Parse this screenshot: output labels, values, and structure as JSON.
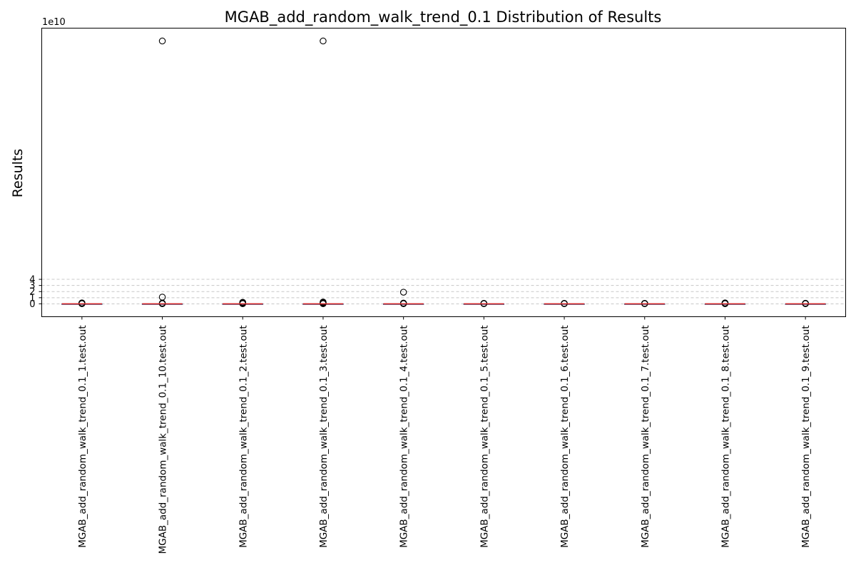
{
  "chart_data": {
    "type": "box",
    "title": "MGAB_add_random_walk_trend_0.1 Distribution of Results",
    "xlabel": "",
    "ylabel": "Results",
    "y_scale_label": "1e10",
    "y_scale": 10000000000,
    "ylim": [
      -2.1,
      45.0
    ],
    "yticks": [
      0,
      1,
      2,
      3,
      4
    ],
    "grid": "y-dashed",
    "colors": {
      "median": "#d62728",
      "box": "#1f3b7a",
      "outlier_edge": "#000000",
      "grid": "#c8c8c8"
    },
    "categories": [
      "MGAB_add_random_walk_trend_0.1_1.test.out",
      "MGAB_add_random_walk_trend_0.1_10.test.out",
      "MGAB_add_random_walk_trend_0.1_2.test.out",
      "MGAB_add_random_walk_trend_0.1_3.test.out",
      "MGAB_add_random_walk_trend_0.1_4.test.out",
      "MGAB_add_random_walk_trend_0.1_5.test.out",
      "MGAB_add_random_walk_trend_0.1_6.test.out",
      "MGAB_add_random_walk_trend_0.1_7.test.out",
      "MGAB_add_random_walk_trend_0.1_8.test.out",
      "MGAB_add_random_walk_trend_0.1_9.test.out"
    ],
    "boxes": [
      {
        "q1": 0,
        "median": 0,
        "q3": 0,
        "whisker_low": 0,
        "whisker_high": 0,
        "outliers": [
          0.02,
          0.05,
          0.1,
          0.15
        ]
      },
      {
        "q1": 0,
        "median": 0,
        "q3": 0,
        "whisker_low": 0,
        "whisker_high": 0,
        "outliers": [
          0.02,
          0.06,
          0.12,
          1.1,
          42.9
        ]
      },
      {
        "q1": 0,
        "median": 0,
        "q3": 0,
        "whisker_low": 0,
        "whisker_high": 0,
        "outliers": [
          0.02,
          0.06,
          0.1,
          0.18,
          0.25
        ]
      },
      {
        "q1": 0,
        "median": 0,
        "q3": 0,
        "whisker_low": 0,
        "whisker_high": 0,
        "outliers": [
          0.02,
          0.06,
          0.12,
          0.2,
          0.3,
          42.9
        ]
      },
      {
        "q1": 0,
        "median": 0,
        "q3": 0,
        "whisker_low": 0,
        "whisker_high": 0,
        "outliers": [
          0.02,
          0.06,
          0.12,
          1.9
        ]
      },
      {
        "q1": 0,
        "median": 0,
        "q3": 0,
        "whisker_low": 0,
        "whisker_high": 0,
        "outliers": [
          0.02,
          0.05,
          0.08
        ]
      },
      {
        "q1": 0,
        "median": 0,
        "q3": 0,
        "whisker_low": 0,
        "whisker_high": 0,
        "outliers": [
          0.02,
          0.05,
          0.08
        ]
      },
      {
        "q1": 0,
        "median": 0,
        "q3": 0,
        "whisker_low": 0,
        "whisker_high": 0,
        "outliers": [
          0.02,
          0.05,
          0.08
        ]
      },
      {
        "q1": 0,
        "median": 0,
        "q3": 0,
        "whisker_low": 0,
        "whisker_high": 0,
        "outliers": [
          0.02,
          0.06,
          0.1,
          0.15
        ]
      },
      {
        "q1": 0,
        "median": 0,
        "q3": 0,
        "whisker_low": 0,
        "whisker_high": 0,
        "outliers": [
          0.02,
          0.05,
          0.1
        ]
      }
    ]
  }
}
